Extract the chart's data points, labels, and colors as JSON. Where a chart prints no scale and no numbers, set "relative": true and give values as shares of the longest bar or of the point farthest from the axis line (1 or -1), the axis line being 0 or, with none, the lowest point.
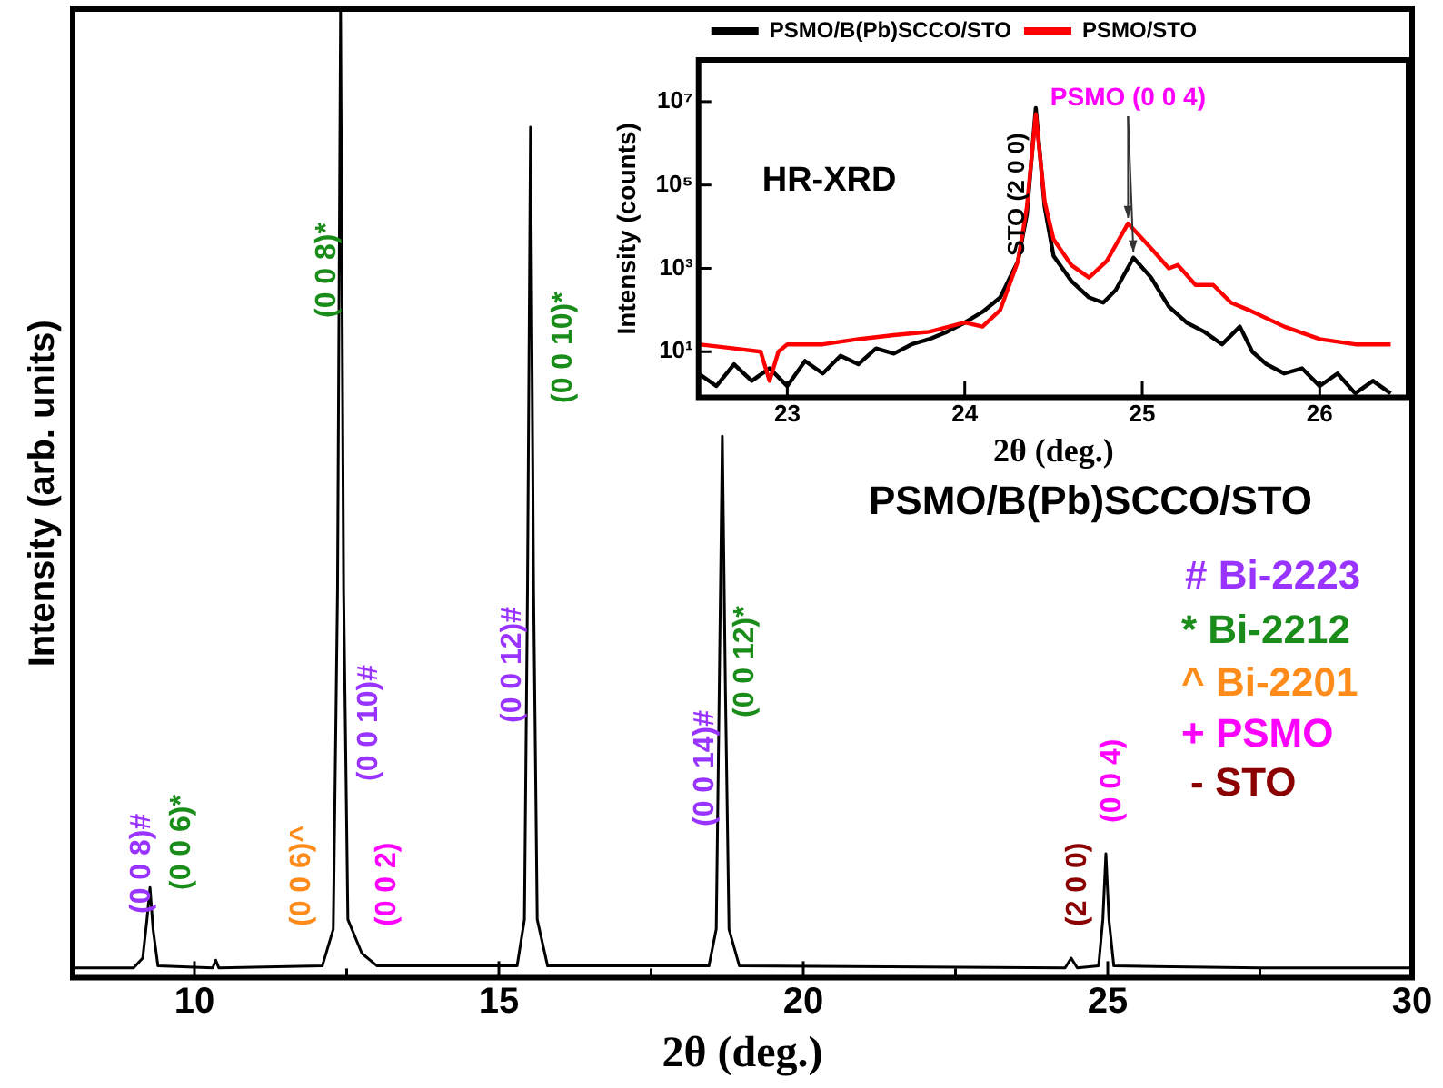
{
  "chart_data": [
    {
      "type": "line",
      "xlabel": "2θ (deg.)",
      "ylabel": "Intensity (arb. units)",
      "relative": true,
      "color": "#000000",
      "xlim": [
        8,
        30
      ],
      "xticks": [
        10,
        {
          "value": 12.5,
          "label": null
        },
        15,
        {
          "value": 17.5,
          "label": null
        },
        20,
        {
          "value": 22.5,
          "label": null
        },
        25,
        {
          "value": 27.5,
          "label": null
        },
        30
      ],
      "x": [
        8.0,
        9.0,
        9.15,
        9.22,
        9.27,
        9.32,
        9.4,
        10.3,
        10.35,
        10.4,
        12.1,
        12.28,
        12.35,
        12.4,
        12.45,
        12.52,
        12.75,
        13.0,
        15.3,
        15.42,
        15.47,
        15.52,
        15.57,
        15.63,
        15.8,
        18.45,
        18.57,
        18.62,
        18.67,
        18.72,
        18.78,
        18.95,
        24.3,
        24.4,
        24.5,
        24.85,
        24.92,
        24.97,
        25.02,
        25.1,
        27.5,
        30.0
      ],
      "values": [
        0.01,
        0.01,
        0.02,
        0.06,
        0.093,
        0.05,
        0.012,
        0.01,
        0.018,
        0.01,
        0.012,
        0.05,
        0.4,
        1.0,
        0.4,
        0.06,
        0.025,
        0.012,
        0.012,
        0.06,
        0.4,
        0.878,
        0.4,
        0.06,
        0.012,
        0.012,
        0.05,
        0.3,
        0.559,
        0.3,
        0.05,
        0.012,
        0.01,
        0.02,
        0.01,
        0.012,
        0.06,
        0.128,
        0.06,
        0.012,
        0.01,
        0.01
      ],
      "annotations": [
        "PSMO/B(Pb)SCCO/STO",
        "# Bi-2223",
        "* Bi-2212",
        "^ Bi-2201",
        "+ PSMO",
        "- STO",
        "(0 0 8)#",
        "(0 0 6)*",
        "(0 0 6)^",
        "(0 0 8)*",
        "(0 0 10)#",
        "(0 0 2)",
        "(0 0 12)#",
        "(0 0 10)*",
        "(0 0 14)#",
        "(0 0 12)*",
        "(2 0 0)",
        "(0 0 4)"
      ]
    },
    {
      "type": "line",
      "xlabel": "2θ (deg.)",
      "ylabel": "Intensity (counts)",
      "log": "y",
      "legend": "top left",
      "xlim": [
        22.5,
        26.5
      ],
      "xticks": [
        23,
        24,
        25,
        26
      ],
      "ylim": [
        0.8,
        100000000
      ],
      "yticks": [
        {
          "value": 10,
          "label": "10¹"
        },
        {
          "value": 1000,
          "label": "10³"
        },
        {
          "value": 100000,
          "label": "10⁵"
        },
        {
          "value": 10000000,
          "label": "10⁷"
        }
      ],
      "series": [
        {
          "name": "PSMO/B(Pb)SCCO/STO",
          "color": "#000000",
          "x": [
            22.5,
            22.6,
            22.7,
            22.8,
            22.9,
            23.0,
            23.1,
            23.2,
            23.3,
            23.4,
            23.5,
            23.6,
            23.7,
            23.8,
            23.9,
            24.0,
            24.1,
            24.2,
            24.3,
            24.35,
            24.4,
            24.45,
            24.5,
            24.6,
            24.7,
            24.78,
            24.85,
            24.95,
            25.05,
            25.15,
            25.25,
            25.35,
            25.45,
            25.55,
            25.62,
            25.7,
            25.8,
            25.9,
            26.0,
            26.1,
            26.2,
            26.3,
            26.4
          ],
          "values": [
            3,
            1.5,
            5,
            2,
            4,
            1.5,
            6,
            3,
            8,
            5,
            12,
            9,
            15,
            20,
            30,
            50,
            90,
            200,
            1500,
            20000,
            7000000,
            30000,
            2000,
            500,
            200,
            150,
            300,
            1800,
            600,
            120,
            50,
            30,
            15,
            40,
            10,
            5,
            3,
            4,
            1.5,
            3,
            1,
            2,
            1
          ]
        },
        {
          "name": "PSMO/STO",
          "color": "#ff0000",
          "x": [
            22.5,
            22.7,
            22.85,
            22.9,
            22.95,
            23.0,
            23.2,
            23.4,
            23.6,
            23.8,
            24.0,
            24.1,
            24.2,
            24.3,
            24.35,
            24.4,
            24.45,
            24.5,
            24.6,
            24.7,
            24.8,
            24.92,
            25.05,
            25.15,
            25.2,
            25.3,
            25.4,
            25.5,
            25.6,
            25.8,
            26.0,
            26.2,
            26.4
          ],
          "values": [
            15,
            12,
            10,
            2,
            10,
            15,
            15,
            20,
            25,
            30,
            50,
            40,
            100,
            1500,
            30000,
            5000000,
            40000,
            5000,
            1200,
            600,
            1500,
            12000,
            3000,
            1000,
            1200,
            400,
            400,
            150,
            100,
            40,
            20,
            15,
            15
          ]
        }
      ],
      "annotations": [
        "HR-XRD",
        {
          "text": "STO (2 0 0)",
          "x": 24.3,
          "y": 2000
        },
        {
          "text": "PSMO (0 0 4)",
          "x": 24.92,
          "y": 12000
        }
      ]
    }
  ]
}
